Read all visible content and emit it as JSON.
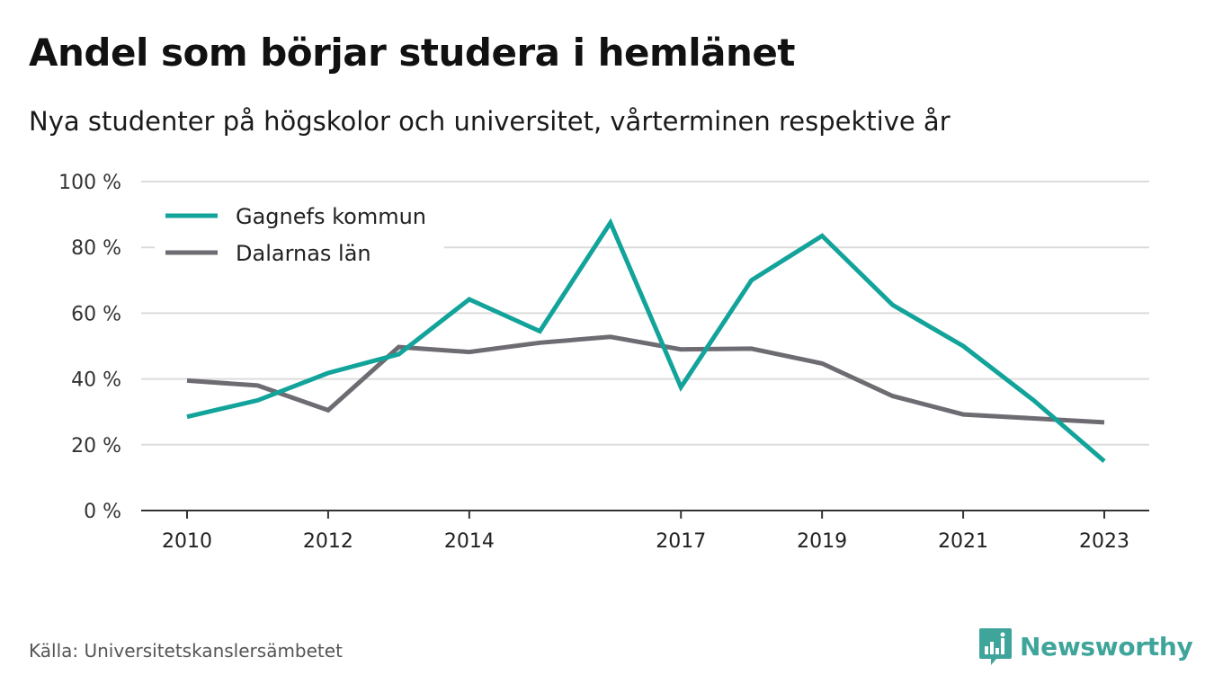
{
  "header": {
    "title": "Andel som börjar studera i hemlänet",
    "subtitle": "Nya studenter på högskolor och universitet, vårterminen respektive år"
  },
  "footer": {
    "source": "Källa: Universitetskanslersämbetet",
    "brand": "Newsworthy",
    "brand_icon": "bar-chart-speech-bubble-icon",
    "brand_color": "#3fa59a"
  },
  "chart_data": {
    "type": "line",
    "x": [
      2010,
      2011,
      2012,
      2013,
      2014,
      2015,
      2016,
      2017,
      2018,
      2019,
      2020,
      2021,
      2022,
      2023
    ],
    "x_ticks": [
      2010,
      2012,
      2014,
      2017,
      2019,
      2021,
      2023
    ],
    "ylim": [
      0,
      100
    ],
    "y_ticks": [
      0,
      20,
      40,
      60,
      80,
      100
    ],
    "y_tick_labels": [
      "0 %",
      "20 %",
      "40 %",
      "60 %",
      "80 %",
      "100 %"
    ],
    "grid": true,
    "legend_position": "top-left",
    "series": [
      {
        "name": "Gagnefs kommun",
        "color": "#12a39a",
        "values": [
          28.5,
          33.5,
          41.8,
          47.5,
          64.2,
          54.5,
          87.5,
          37.5,
          70.0,
          83.5,
          62.5,
          50.0,
          33.5,
          15.0
        ]
      },
      {
        "name": "Dalarnas län",
        "color": "#6e6c72",
        "values": [
          39.5,
          38.0,
          30.5,
          49.7,
          48.2,
          51.0,
          52.8,
          49.0,
          49.2,
          44.7,
          34.8,
          29.2,
          28.0,
          26.8
        ]
      }
    ]
  }
}
